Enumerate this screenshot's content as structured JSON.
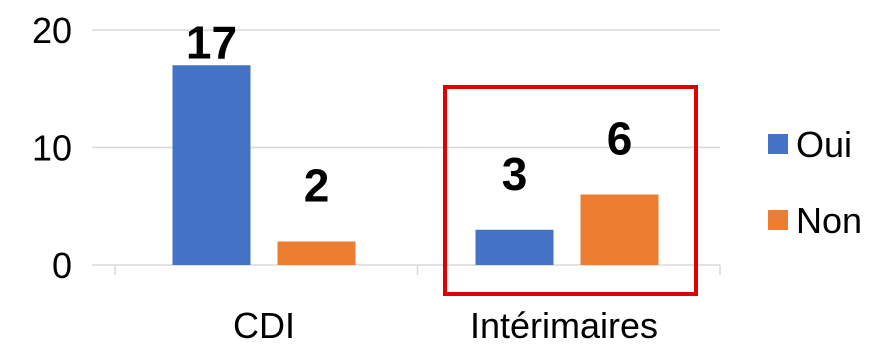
{
  "chart_data": {
    "type": "bar",
    "categories": [
      "CDI",
      "Intérimaires"
    ],
    "series": [
      {
        "name": "Oui",
        "values": [
          17,
          3
        ],
        "color": "#4472C4"
      },
      {
        "name": "Non",
        "values": [
          2,
          6
        ],
        "color": "#ED7D31"
      }
    ],
    "ylim": [
      0,
      20
    ],
    "yticks": [
      "0",
      "10",
      "20"
    ],
    "data_labels": true,
    "grid": true,
    "legend": "right",
    "highlight": {
      "category": "Intérimaires",
      "color": "#E00000"
    }
  }
}
